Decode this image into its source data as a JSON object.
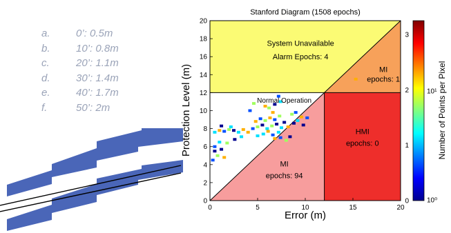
{
  "left_notes": [
    {
      "letter": "a.",
      "text": "0’: 0.5m"
    },
    {
      "letter": "b.",
      "text": "10’: 0.8m"
    },
    {
      "letter": "c.",
      "text": "20’: 1.1m"
    },
    {
      "letter": "d.",
      "text": "30’: 1.4m"
    },
    {
      "letter": "e.",
      "text": "40’: 1.7m"
    },
    {
      "letter": "f.",
      "text": "50’: 2m"
    }
  ],
  "chart_data": {
    "type": "heatmap",
    "title": "Stanford Diagram (1508 epochs)",
    "xlabel": "Error (m)",
    "ylabel": "Protection Level (m)",
    "xlim": [
      0,
      20
    ],
    "ylim": [
      0,
      20
    ],
    "alert_limit": 12,
    "xticks": [
      "0",
      "5",
      "10",
      "15",
      "20"
    ],
    "yticks": [
      "0",
      "2",
      "4",
      "6",
      "8",
      "10",
      "12",
      "14",
      "16",
      "18",
      "20"
    ],
    "regions": [
      {
        "name": "System Unavailable",
        "lines": [
          "System Unavailable",
          "Alarm Epochs: 4"
        ],
        "color": "#fbfb74"
      },
      {
        "name": "MI upper",
        "lines": [
          "MI",
          "epochs: 1"
        ],
        "color": "#f7a15a"
      },
      {
        "name": "Normal Operation",
        "lines": [
          "Normal Operation"
        ],
        "color": "#ffffff"
      },
      {
        "name": "MI lower",
        "lines": [
          "MI",
          "epochs: 94"
        ],
        "color": "#f79d9d"
      },
      {
        "name": "HMI",
        "lines": [
          "HMI",
          "epochs: 0"
        ],
        "color": "#ee2e2b"
      }
    ],
    "points": [
      [
        0.5,
        5.5
      ],
      [
        0.5,
        6.0
      ],
      [
        0.8,
        5.0
      ],
      [
        1.2,
        5.7
      ],
      [
        1.0,
        6.5
      ],
      [
        1.5,
        4.8
      ],
      [
        0.3,
        4.5
      ],
      [
        0.5,
        7.6
      ],
      [
        1.0,
        7.8
      ],
      [
        1.5,
        7.7
      ],
      [
        2.0,
        7.9
      ],
      [
        2.5,
        7.8
      ],
      [
        3.0,
        7.6
      ],
      [
        3.5,
        7.9
      ],
      [
        1.2,
        8.3
      ],
      [
        2.2,
        8.2
      ],
      [
        4.0,
        7.6
      ],
      [
        4.5,
        8.0
      ],
      [
        5.0,
        8.2
      ],
      [
        5.5,
        8.4
      ],
      [
        6.0,
        8.0
      ],
      [
        6.5,
        8.3
      ],
      [
        7.0,
        8.5
      ],
      [
        7.5,
        8.1
      ],
      [
        4.8,
        8.8
      ],
      [
        5.3,
        9.1
      ],
      [
        5.8,
        8.9
      ],
      [
        6.3,
        9.2
      ],
      [
        6.8,
        9.0
      ],
      [
        7.3,
        9.4
      ],
      [
        7.8,
        8.7
      ],
      [
        5.6,
        7.4
      ],
      [
        6.1,
        7.7
      ],
      [
        6.6,
        7.3
      ],
      [
        7.2,
        7.6
      ],
      [
        6.8,
        6.9
      ],
      [
        7.4,
        7.0
      ],
      [
        8.0,
        6.7
      ],
      [
        8.4,
        7.1
      ],
      [
        5.0,
        7.2
      ],
      [
        8.2,
        8.2
      ],
      [
        8.8,
        8.6
      ],
      [
        9.2,
        8.9
      ],
      [
        9.6,
        9.3
      ],
      [
        10.2,
        9.2
      ],
      [
        8.6,
        9.6
      ],
      [
        9.8,
        8.4
      ],
      [
        9.0,
        9.8
      ],
      [
        6.2,
        10.3
      ],
      [
        6.8,
        10.7
      ],
      [
        7.4,
        11.0
      ],
      [
        6.6,
        9.8
      ],
      [
        4.2,
        10.0
      ],
      [
        4.6,
        10.8
      ],
      [
        5.8,
        10.5
      ],
      [
        7.2,
        11.6
      ],
      [
        1.8,
        6.4
      ],
      [
        2.6,
        6.8
      ],
      [
        3.3,
        7.1
      ],
      [
        15.3,
        13.5
      ]
    ],
    "colorbar": {
      "label": "Number of Points per Pixel",
      "left_ticks": [
        "0",
        "1",
        "2",
        "3"
      ],
      "right_ticks": [
        "10⁰",
        "10¹"
      ]
    }
  },
  "colors": {
    "road": "#4a66b8",
    "notes": "#9aa3b8"
  }
}
